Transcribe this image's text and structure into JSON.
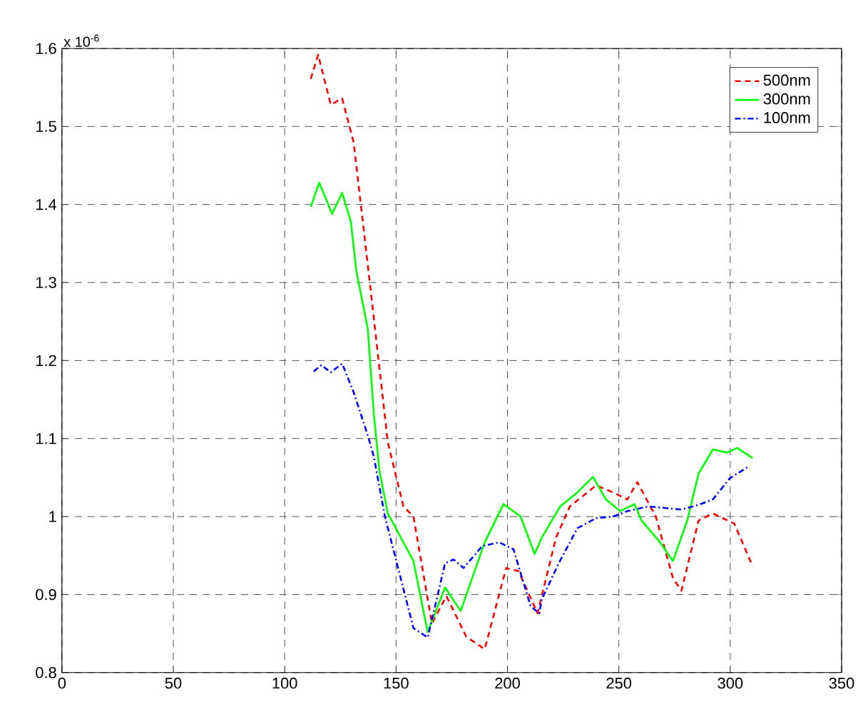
{
  "chart_data": {
    "type": "line",
    "xlim": [
      0,
      350
    ],
    "ylim": [
      0.8,
      1.6
    ],
    "xticks": [
      0,
      50,
      100,
      150,
      200,
      250,
      300,
      350
    ],
    "yticks": [
      0.8,
      0.9,
      1,
      1.1,
      1.2,
      1.3,
      1.4,
      1.5,
      1.6
    ],
    "grid": true,
    "legend": "top right",
    "annotations": [
      "x 10$^{-6}$"
    ],
    "series": [
      {
        "name": "500nm",
        "color": "#ff0000",
        "line_style": "dashed",
        "x": [
          111.7,
          115,
          120.7,
          125.8,
          131,
          138.6,
          146.3,
          153.3,
          157.8,
          166.1,
          172.6,
          181.5,
          189.8,
          199.4,
          205,
          213.5,
          221.8,
          228,
          239.8,
          247.4,
          253.8,
          258.3,
          266.6,
          274.3,
          278.1,
          285.8,
          292.2,
          301.8,
          310.1
        ],
        "values": [
          1.561,
          1.592,
          1.528,
          1.536,
          1.479,
          1.29,
          1.095,
          1.013,
          1.0,
          0.863,
          0.898,
          0.846,
          0.83,
          0.934,
          0.93,
          0.876,
          0.973,
          1.013,
          1.04,
          1.031,
          1.022,
          1.044,
          1.0,
          0.921,
          0.905,
          0.995,
          1.004,
          0.991,
          0.936
        ]
      },
      {
        "name": "300nm",
        "color": "#00ff00",
        "line_style": "solid",
        "x": [
          111.7,
          115.5,
          121.3,
          125.8,
          129.7,
          132.2,
          137.3,
          140,
          142.5,
          146.3,
          157.8,
          164.2,
          172,
          179,
          189.8,
          198.2,
          205.9,
          212.2,
          215.4,
          223.7,
          231.4,
          238.4,
          244.2,
          250.6,
          257,
          260.2,
          268.5,
          274.3,
          280.7,
          285.8,
          292.2,
          298.6,
          303.1,
          310.1
        ],
        "values": [
          1.397,
          1.428,
          1.388,
          1.415,
          1.378,
          1.314,
          1.241,
          1.132,
          1.059,
          1.004,
          0.943,
          0.852,
          0.909,
          0.879,
          0.967,
          1.016,
          1.0,
          0.952,
          0.973,
          1.013,
          1.031,
          1.051,
          1.022,
          1.007,
          1.016,
          0.995,
          0.967,
          0.943,
          0.995,
          1.055,
          1.086,
          1.082,
          1.088,
          1.075
        ]
      },
      {
        "name": "100nm",
        "color": "#0000ff",
        "line_style": "dashdot",
        "x": [
          113,
          116.4,
          120.7,
          125.8,
          131,
          137.3,
          140,
          145,
          157.8,
          164.2,
          172,
          175.8,
          180.3,
          188.6,
          196.3,
          202.7,
          210.4,
          214.3,
          215.4,
          223,
          231.4,
          239.8,
          247.4,
          253.8,
          263.4,
          278.1,
          285.8,
          292.2,
          299.8,
          308.2
        ],
        "values": [
          1.186,
          1.194,
          1.185,
          1.196,
          1.159,
          1.104,
          1.077,
          1.0,
          0.857,
          0.845,
          0.94,
          0.945,
          0.934,
          0.962,
          0.967,
          0.958,
          0.885,
          0.876,
          0.894,
          0.94,
          0.985,
          0.998,
          1.0,
          1.007,
          1.013,
          1.009,
          1.015,
          1.022,
          1.049,
          1.064
        ]
      }
    ]
  }
}
